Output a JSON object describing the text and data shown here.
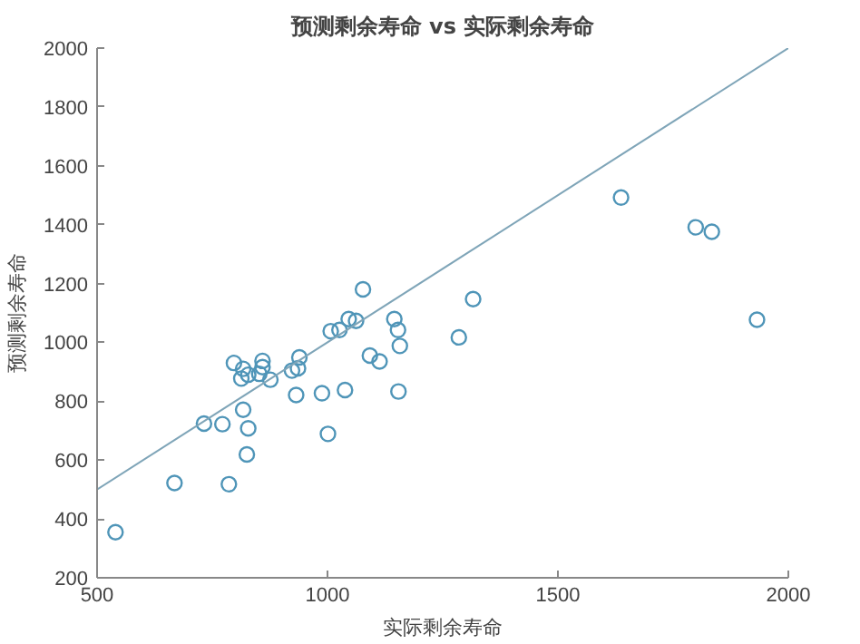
{
  "chart_data": {
    "type": "scatter",
    "title": "预测剩余寿命 vs 实际剩余寿命",
    "xlabel": "实际剩余寿命",
    "ylabel": "预测剩余寿命",
    "xlim": [
      500,
      2000
    ],
    "ylim": [
      200,
      2000
    ],
    "xticks": [
      500,
      1000,
      1500,
      2000
    ],
    "yticks": [
      200,
      400,
      600,
      800,
      1000,
      1200,
      1400,
      1600,
      1800,
      2000
    ],
    "grid": false,
    "marker": "circle",
    "series": [
      {
        "color": "#4f95b8",
        "x": [
          540,
          668,
          786,
          732,
          772,
          825,
          817,
          828,
          797,
          817,
          813,
          828,
          859,
          859,
          852,
          876,
          923,
          936,
          939,
          932,
          988,
          1038,
          1001,
          1007,
          1026,
          1046,
          1062,
          1077,
          1092,
          1113,
          1145,
          1153,
          1157,
          1154,
          1285,
          1316,
          1637,
          1799,
          1834,
          1932
        ],
        "values": [
          355,
          522,
          518,
          724,
          722,
          619,
          771,
          708,
          930,
          910,
          877,
          890,
          937,
          916,
          893,
          873,
          904,
          912,
          949,
          821,
          827,
          838,
          689,
          1038,
          1042,
          1079,
          1073,
          1180,
          955,
          935,
          1079,
          1042,
          988,
          833,
          1017,
          1147,
          1492,
          1391,
          1376,
          1077
        ]
      },
      {
        "type": "line",
        "color": "#7fa5b8",
        "line_style": "solid",
        "marker": "none",
        "x": [
          500,
          2000
        ],
        "values": [
          500,
          2000
        ]
      }
    ]
  }
}
